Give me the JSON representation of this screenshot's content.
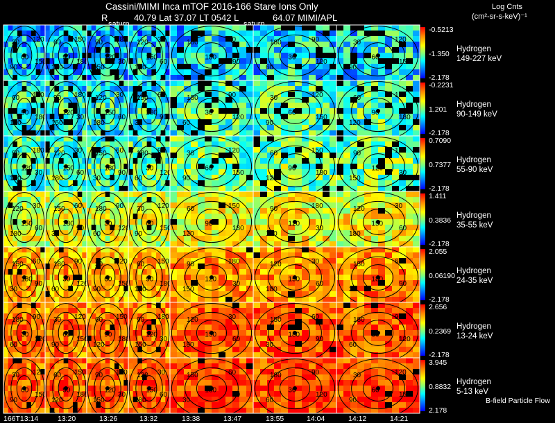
{
  "header": {
    "line1": "Cassini/MIMI Inca mTOF  2016-166   Stare   Ions Only",
    "r_label": "R",
    "line2": "40.79 Lat 37.07 LT 0542 L",
    "l_value": "64.07  MIMI/APL",
    "saturn_labels": [
      "saturn",
      "saturn"
    ],
    "units_line1": "Log Cnts",
    "units_line2": "(cm²-sr-s-keV)⁻¹"
  },
  "chart_data": {
    "type": "heatmap",
    "x_ticks": [
      "166T13:14",
      "13:20",
      "13:26",
      "13:32",
      "13:38",
      "13:47",
      "13:55",
      "14:04",
      "14:12",
      "14:21"
    ],
    "contour_labels": [
      "30",
      "60",
      "90",
      "120",
      "150",
      "180"
    ],
    "rows": [
      {
        "species": "Hydrogen",
        "energy": "149-227 keV",
        "max": "-0.5213",
        "mid": "-1.350",
        "min": "-2.178",
        "level": 0.2
      },
      {
        "species": "Hydrogen",
        "energy": "90-149 keV",
        "max": "-0.2231",
        "mid": "1.201",
        "min": "-2.178",
        "level": 0.3
      },
      {
        "species": "Hydrogen",
        "energy": "55-90 keV",
        "max": "0.7090",
        "mid": "0.7377",
        "min": "-2.178",
        "level": 0.37
      },
      {
        "species": "Hydrogen",
        "energy": "35-55 keV",
        "max": "1.411",
        "mid": "0.3836",
        "min": "-2.178",
        "level": 0.55
      },
      {
        "species": "Hydrogen",
        "energy": "24-35 keV",
        "max": "2.055",
        "mid": "0.06190",
        "min": "-2.178",
        "level": 0.7
      },
      {
        "species": "Hydrogen",
        "energy": "13-24 keV",
        "max": "2.656",
        "mid": "0.2369",
        "min": "-2.178",
        "level": 0.78
      },
      {
        "species": "Hydrogen",
        "energy": "5-13 keV",
        "max": "3.945",
        "mid": "0.8832",
        "min": "2.178",
        "level": 0.82
      }
    ],
    "footer_label": "B-field Particle Flow"
  }
}
